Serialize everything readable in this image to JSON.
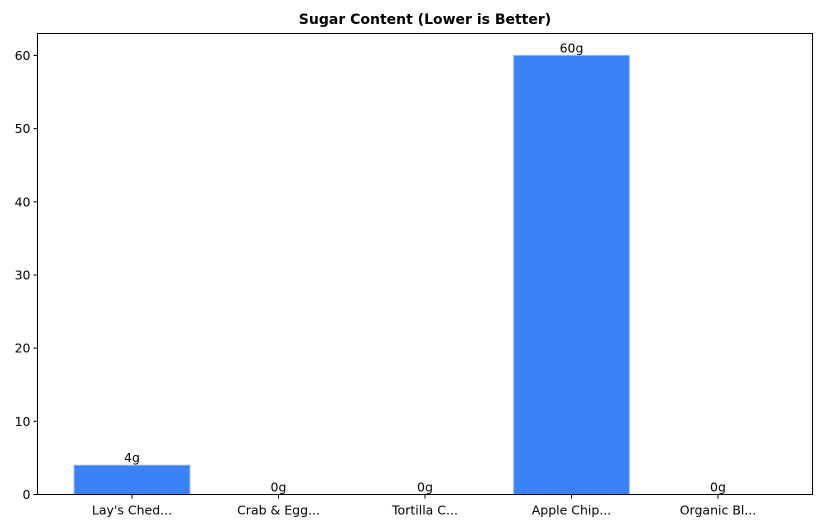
{
  "chart_data": {
    "type": "bar",
    "title": "Sugar Content (Lower is Better)",
    "xlabel": "",
    "ylabel": "",
    "categories": [
      "Lay's Ched...",
      "Crab & Egg...",
      "Tortilla C...",
      "Apple Chip...",
      "Organic Bl..."
    ],
    "values": [
      4,
      0,
      0,
      60,
      0
    ],
    "data_labels": [
      "4g",
      "0g",
      "0g",
      "60g",
      "0g"
    ],
    "ylim": [
      0,
      63
    ],
    "yticks": [
      0,
      10,
      20,
      30,
      40,
      50,
      60
    ],
    "grid": false,
    "bar_color": "#3b82f6"
  }
}
